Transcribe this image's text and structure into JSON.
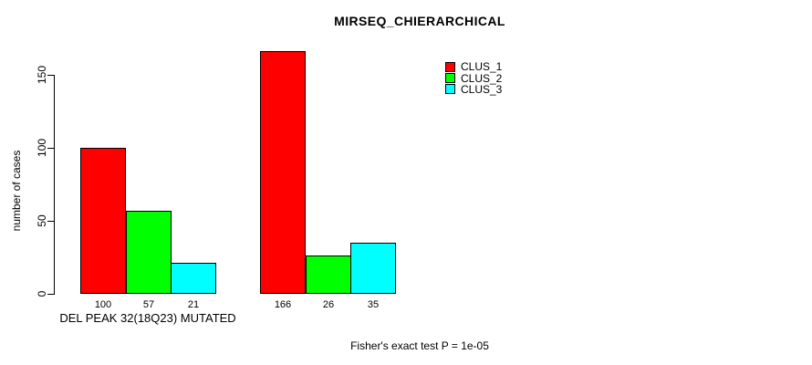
{
  "title": "MIRSEQ_CHIERARCHICAL",
  "footnote": "Fisher's exact test P = 1e-05",
  "chart_data": {
    "type": "bar",
    "title": "MIRSEQ_CHIERARCHICAL",
    "ylabel": "number of cases",
    "xlabel": "DEL PEAK 32(18Q23) MUTATED",
    "yticks": [
      0,
      50,
      100,
      150
    ],
    "ylim": [
      0,
      166
    ],
    "grid": false,
    "legend_position": "top-right",
    "background": "#ffffff",
    "series": [
      {
        "name": "CLUS_1",
        "color": "#ff0000"
      },
      {
        "name": "CLUS_2",
        "color": "#00ff00"
      },
      {
        "name": "CLUS_3",
        "color": "#00ffff"
      }
    ],
    "groups": [
      {
        "label": "DEL PEAK 32(18Q23) MUTATED",
        "values": [
          100,
          57,
          21
        ]
      },
      {
        "label": "",
        "values": [
          166,
          26,
          35
        ]
      }
    ],
    "bar_value_labels": [
      "100",
      "57",
      "21",
      "166",
      "26",
      "35"
    ],
    "annotation": "Fisher's exact test P = 1e-05"
  }
}
